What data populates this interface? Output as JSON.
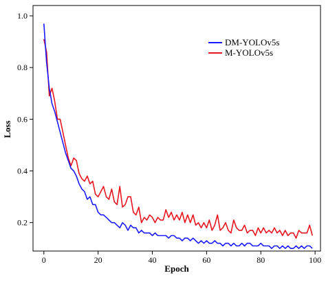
{
  "chart_data": {
    "type": "line",
    "title": "",
    "xlabel": "Epoch",
    "ylabel": "Loss",
    "xlim": [
      -4,
      102
    ],
    "ylim": [
      0.09,
      1.04
    ],
    "xticks": [
      0,
      20,
      40,
      60,
      80,
      100
    ],
    "yticks": [
      0.2,
      0.4,
      0.6,
      0.8,
      1.0
    ],
    "ytick_labels": [
      "0.2",
      "0.4",
      "0.6",
      "0.8",
      "1.0"
    ],
    "grid": false,
    "legend_position": "top-right",
    "series": [
      {
        "name": "DM-YOLOv5s",
        "color": "#1a1aff",
        "x": [
          0,
          1,
          2,
          3,
          4,
          5,
          6,
          7,
          8,
          9,
          10,
          11,
          12,
          13,
          14,
          15,
          16,
          17,
          18,
          19,
          20,
          21,
          22,
          23,
          24,
          25,
          26,
          27,
          28,
          29,
          30,
          31,
          32,
          33,
          34,
          35,
          36,
          37,
          38,
          39,
          40,
          41,
          42,
          43,
          44,
          45,
          46,
          47,
          48,
          49,
          50,
          51,
          52,
          53,
          54,
          55,
          56,
          57,
          58,
          59,
          60,
          61,
          62,
          63,
          64,
          65,
          66,
          67,
          68,
          69,
          70,
          71,
          72,
          73,
          74,
          75,
          76,
          77,
          78,
          79,
          80,
          81,
          82,
          83,
          84,
          85,
          86,
          87,
          88,
          89,
          90,
          91,
          92,
          93,
          94,
          95,
          96,
          97,
          98,
          99
        ],
        "y": [
          0.97,
          0.82,
          0.72,
          0.66,
          0.63,
          0.59,
          0.55,
          0.51,
          0.47,
          0.44,
          0.41,
          0.4,
          0.38,
          0.35,
          0.33,
          0.32,
          0.29,
          0.3,
          0.27,
          0.27,
          0.24,
          0.23,
          0.23,
          0.22,
          0.21,
          0.2,
          0.2,
          0.19,
          0.18,
          0.2,
          0.19,
          0.17,
          0.19,
          0.18,
          0.18,
          0.16,
          0.17,
          0.16,
          0.16,
          0.16,
          0.15,
          0.16,
          0.15,
          0.15,
          0.15,
          0.15,
          0.14,
          0.15,
          0.15,
          0.14,
          0.14,
          0.13,
          0.14,
          0.14,
          0.13,
          0.14,
          0.13,
          0.12,
          0.13,
          0.12,
          0.13,
          0.12,
          0.12,
          0.13,
          0.12,
          0.12,
          0.11,
          0.12,
          0.12,
          0.11,
          0.12,
          0.11,
          0.11,
          0.12,
          0.11,
          0.12,
          0.12,
          0.11,
          0.11,
          0.11,
          0.12,
          0.11,
          0.11,
          0.11,
          0.1,
          0.11,
          0.11,
          0.1,
          0.11,
          0.1,
          0.11,
          0.1,
          0.1,
          0.11,
          0.1,
          0.11,
          0.1,
          0.11,
          0.11,
          0.1
        ]
      },
      {
        "name": "M-YOLOv5s",
        "color": "#e8141e",
        "x": [
          0,
          1,
          2,
          3,
          4,
          5,
          6,
          7,
          8,
          9,
          10,
          11,
          12,
          13,
          14,
          15,
          16,
          17,
          18,
          19,
          20,
          21,
          22,
          23,
          24,
          25,
          26,
          27,
          28,
          29,
          30,
          31,
          32,
          33,
          34,
          35,
          36,
          37,
          38,
          39,
          40,
          41,
          42,
          43,
          44,
          45,
          46,
          47,
          48,
          49,
          50,
          51,
          52,
          53,
          54,
          55,
          56,
          57,
          58,
          59,
          60,
          61,
          62,
          63,
          64,
          65,
          66,
          67,
          68,
          69,
          70,
          71,
          72,
          73,
          74,
          75,
          76,
          77,
          78,
          79,
          80,
          81,
          82,
          83,
          84,
          85,
          86,
          87,
          88,
          89,
          90,
          91,
          92,
          93,
          94,
          95,
          96,
          97,
          98,
          99
        ],
        "y": [
          0.91,
          0.86,
          0.69,
          0.72,
          0.67,
          0.6,
          0.6,
          0.55,
          0.5,
          0.45,
          0.42,
          0.45,
          0.44,
          0.39,
          0.37,
          0.36,
          0.38,
          0.35,
          0.36,
          0.31,
          0.3,
          0.32,
          0.34,
          0.3,
          0.29,
          0.33,
          0.28,
          0.27,
          0.34,
          0.26,
          0.27,
          0.3,
          0.3,
          0.24,
          0.23,
          0.26,
          0.2,
          0.22,
          0.21,
          0.23,
          0.22,
          0.2,
          0.22,
          0.21,
          0.21,
          0.25,
          0.22,
          0.24,
          0.21,
          0.23,
          0.21,
          0.24,
          0.2,
          0.23,
          0.2,
          0.23,
          0.19,
          0.2,
          0.18,
          0.2,
          0.18,
          0.21,
          0.17,
          0.19,
          0.23,
          0.17,
          0.18,
          0.2,
          0.17,
          0.16,
          0.21,
          0.18,
          0.17,
          0.17,
          0.19,
          0.16,
          0.17,
          0.17,
          0.15,
          0.18,
          0.16,
          0.18,
          0.16,
          0.17,
          0.16,
          0.18,
          0.16,
          0.17,
          0.15,
          0.17,
          0.15,
          0.16,
          0.16,
          0.14,
          0.17,
          0.16,
          0.16,
          0.16,
          0.19,
          0.15
        ]
      }
    ]
  }
}
